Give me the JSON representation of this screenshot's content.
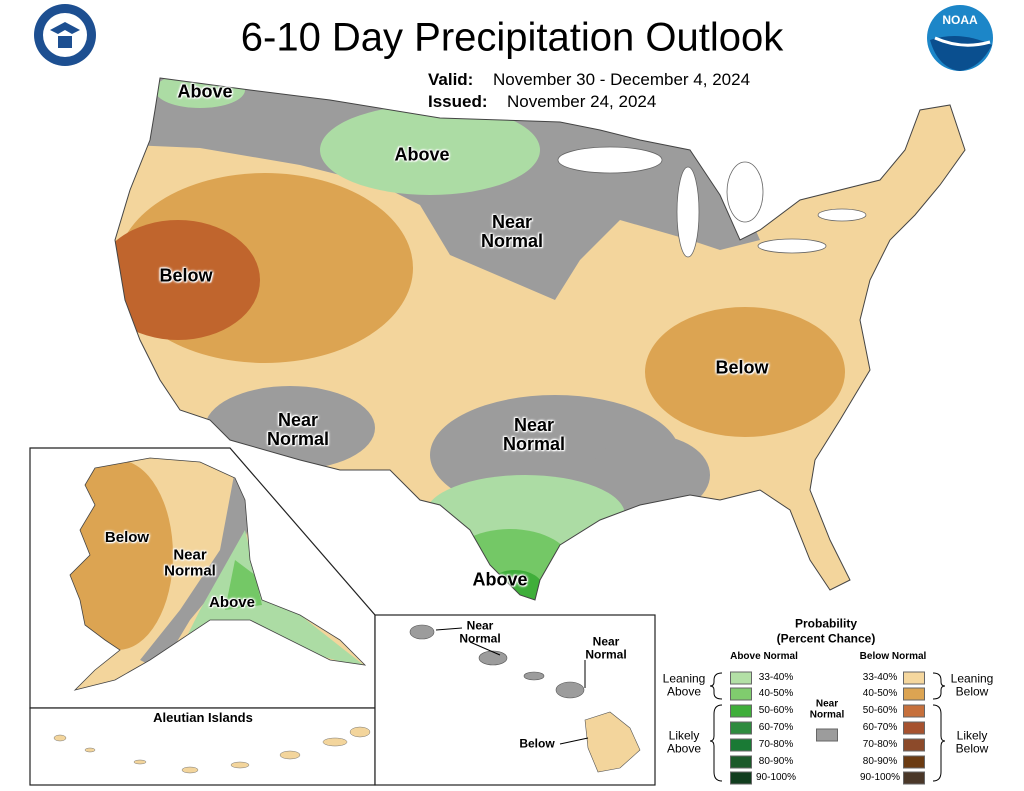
{
  "header": {
    "title": "6-10 Day Precipitation Outlook",
    "valid_label": "Valid:",
    "valid_dates": "November 30 - December 4, 2024",
    "issued_label": "Issued:",
    "issued_date": "November 24, 2024",
    "noaa_logo": "NOAA"
  },
  "conus_labels": [
    "Above",
    "Above",
    "Near Normal",
    "Below",
    "Near Normal",
    "Near Normal",
    "Below",
    "Above"
  ],
  "alaska_labels": [
    "Below",
    "Near Normal",
    "Above"
  ],
  "aleutian_title": "Aleutian Islands",
  "hawaii_labels": [
    "Near Normal",
    "Near Normal",
    "Below"
  ],
  "legend": {
    "title": "Probability",
    "subtitle": "(Percent Chance)",
    "above_normal": {
      "heading": "Above Normal",
      "items": [
        {
          "range": "33-40%",
          "color": "#b3e0a6"
        },
        {
          "range": "40-50%",
          "color": "#80cc6e"
        },
        {
          "range": "50-60%",
          "color": "#3fae3a"
        },
        {
          "range": "60-70%",
          "color": "#2e8b3e"
        },
        {
          "range": "70-80%",
          "color": "#1a7a35"
        },
        {
          "range": "80-90%",
          "color": "#1c5a2a"
        },
        {
          "range": "90-100%",
          "color": "#113d1e"
        }
      ]
    },
    "below_normal": {
      "heading": "Below Normal",
      "items": [
        {
          "range": "33-40%",
          "color": "#f5d79e"
        },
        {
          "range": "40-50%",
          "color": "#dca452"
        },
        {
          "range": "50-60%",
          "color": "#c6703c"
        },
        {
          "range": "60-70%",
          "color": "#a6522f"
        },
        {
          "range": "70-80%",
          "color": "#8c4a2a"
        },
        {
          "range": "80-90%",
          "color": "#6b3b12"
        },
        {
          "range": "90-100%",
          "color": "#4a3728"
        }
      ]
    },
    "near_normal": {
      "label": "Near Normal",
      "color": "#9c9c9c"
    },
    "groups": {
      "leaning_above": "Leaning Above",
      "likely_above": "Likely Above",
      "leaning_below": "Leaning Below",
      "likely_below": "Likely Below"
    }
  }
}
